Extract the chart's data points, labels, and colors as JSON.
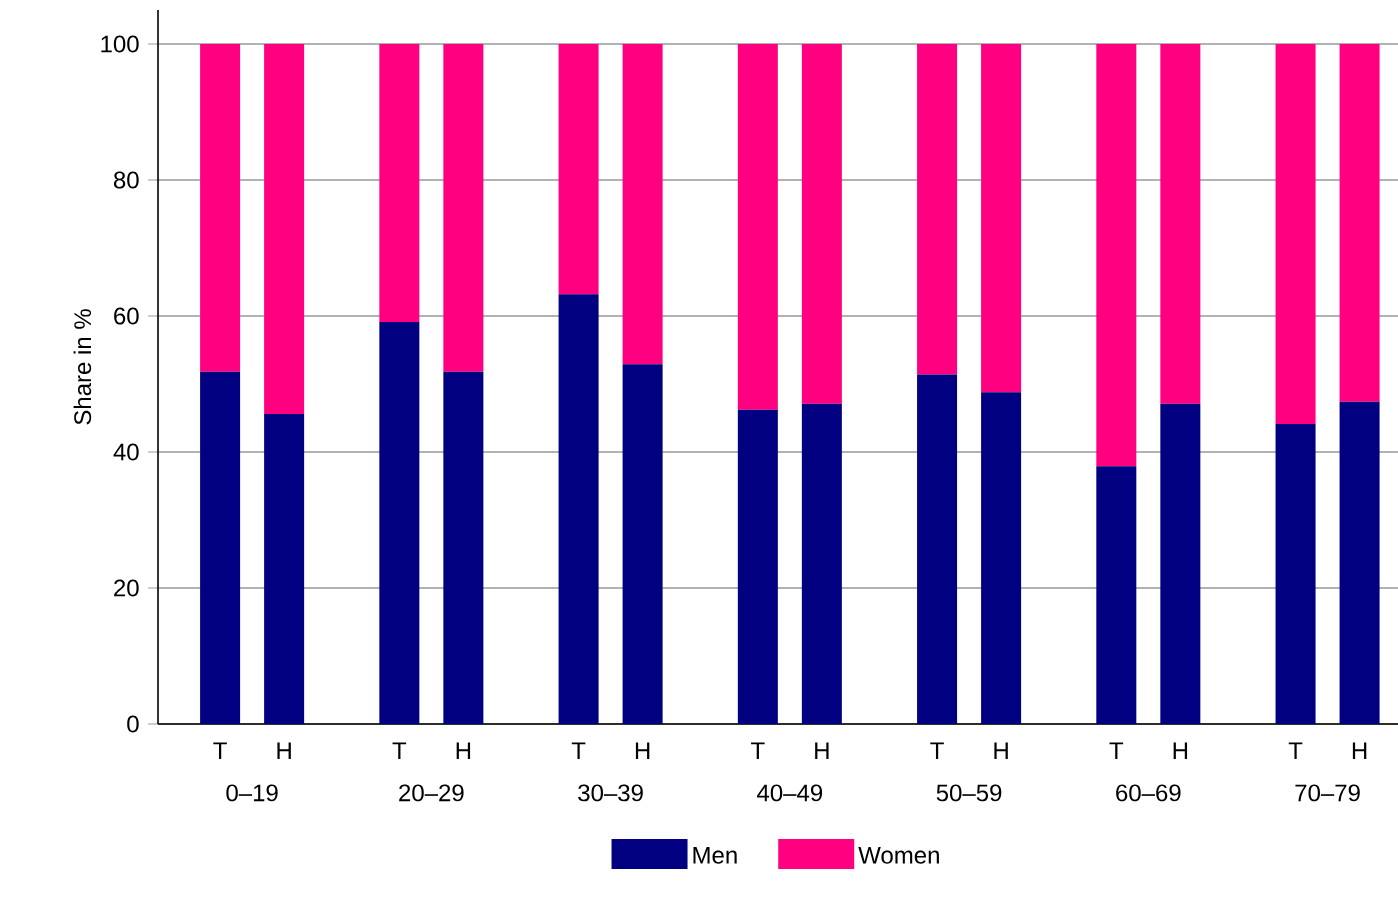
{
  "chart_data": {
    "type": "bar",
    "stacked": true,
    "ylabel": "Share in %",
    "categories": [
      "T",
      "H",
      "T",
      "H",
      "T",
      "H",
      "T",
      "H",
      "T",
      "H",
      "T",
      "H",
      "T",
      "H"
    ],
    "annotations": [
      "0–19",
      "20–29",
      "30–39",
      "40–49",
      "50–59",
      "60–69",
      "70–79"
    ],
    "series": [
      {
        "name": "Men",
        "color": "#000080",
        "values": [
          51.8,
          45.6,
          59.1,
          51.8,
          63.2,
          52.9,
          46.2,
          47.1,
          51.4,
          48.8,
          37.9,
          47.1,
          44.1,
          47.4
        ]
      },
      {
        "name": "Women",
        "color": "#ff0080",
        "values": [
          48.2,
          54.4,
          40.9,
          48.2,
          36.8,
          47.1,
          53.8,
          52.9,
          48.6,
          51.2,
          62.1,
          52.9,
          55.9,
          52.6
        ]
      }
    ],
    "ylim": [
      0,
      105
    ],
    "yticks": [
      0,
      20,
      40,
      60,
      80,
      100
    ],
    "grid": "y",
    "legend": "bottom"
  }
}
